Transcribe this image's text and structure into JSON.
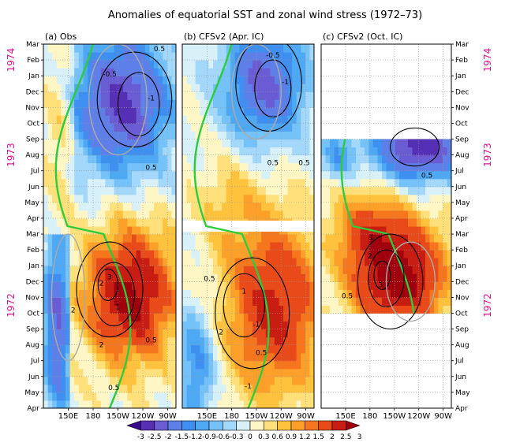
{
  "figure": {
    "title": "Anomalies of equatorial SST and zonal wind stress (1972–73)"
  },
  "chart_data": {
    "type": "heatmap",
    "months": [
      "Apr",
      "May",
      "Jun",
      "Jul",
      "Aug",
      "Sep",
      "Oct",
      "Nov",
      "Dec",
      "Jan",
      "Feb",
      "Mar",
      "Apr",
      "May",
      "Jun",
      "Jul",
      "Aug",
      "Sep",
      "Oct",
      "Nov",
      "Dec",
      "Jan",
      "Feb",
      "Mar"
    ],
    "year_labels": [
      {
        "text": "1972",
        "row": 6.5
      },
      {
        "text": "1973",
        "row": 16
      },
      {
        "text": "1974",
        "row": 22
      }
    ],
    "x_ticks": [
      "150E",
      "180",
      "150W",
      "120W",
      "90W"
    ],
    "colorbar": {
      "levels": [
        "-3",
        "-2.5",
        "-2",
        "-1.5",
        "-1.2",
        "-0.9",
        "-0.6",
        "-0.3",
        "0",
        "0.3",
        "0.6",
        "0.9",
        "1.2",
        "1.5",
        "2",
        "2.5",
        "3"
      ],
      "colors": [
        "#3a0a8c",
        "#5530b4",
        "#6a5cd2",
        "#5f7fe8",
        "#3f8ff0",
        "#4fa8f4",
        "#74c2f8",
        "#a4d8fa",
        "#d8f0f8",
        "#fff6c6",
        "#ffe07a",
        "#ffc23c",
        "#fca02a",
        "#f6761e",
        "#e84a1a",
        "#c81d12",
        "#a0000e"
      ]
    },
    "panels": [
      {
        "label": "(a) Obs",
        "first_row": 0,
        "last_row": 23,
        "gap_rows": []
      },
      {
        "label": "(b) CFSv2 (Apr. IC)",
        "first_row": 0,
        "last_row": 23,
        "gap_rows": [
          11.5
        ]
      },
      {
        "label": "(c) CFSv2 (Oct. IC)",
        "first_row": 6,
        "last_row": 17,
        "gap_rows": []
      }
    ],
    "contour_labels": [
      {
        "panel": 0,
        "text": "2",
        "lon": 190,
        "row": 7.9
      },
      {
        "panel": 0,
        "text": "3",
        "lon": 200,
        "row": 8.3
      },
      {
        "panel": 0,
        "text": "1",
        "lon": 210,
        "row": 6.4
      },
      {
        "panel": 0,
        "text": "2",
        "lon": 190,
        "row": 4.0
      },
      {
        "panel": 0,
        "text": "0.5",
        "lon": 250,
        "row": 4.3
      },
      {
        "panel": 0,
        "text": "0.5",
        "lon": 205,
        "row": 1.3
      },
      {
        "panel": 0,
        "text": "2",
        "lon": 156,
        "row": 6.2
      },
      {
        "panel": 0,
        "text": "-1",
        "lon": 250,
        "row": 19.6
      },
      {
        "panel": 0,
        "text": "0.5",
        "lon": 250,
        "row": 15.2
      },
      {
        "panel": 0,
        "text": "-0.5",
        "lon": 200,
        "row": 21.1
      },
      {
        "panel": 0,
        "text": "0.5",
        "lon": 260,
        "row": 22.7
      },
      {
        "panel": 1,
        "text": "-1",
        "lon": 210,
        "row": 5.3
      },
      {
        "panel": 1,
        "text": "-1",
        "lon": 200,
        "row": 1.4
      },
      {
        "panel": 1,
        "text": "2",
        "lon": 167,
        "row": 4.8
      },
      {
        "panel": 1,
        "text": "1",
        "lon": 195,
        "row": 7.4
      },
      {
        "panel": 1,
        "text": "0.5",
        "lon": 153,
        "row": 8.2
      },
      {
        "panel": 1,
        "text": "0.5",
        "lon": 216,
        "row": 3.5
      },
      {
        "panel": 1,
        "text": "-0.5",
        "lon": 230,
        "row": 22.3
      },
      {
        "panel": 1,
        "text": "-1",
        "lon": 245,
        "row": 20.6
      },
      {
        "panel": 1,
        "text": "0.5",
        "lon": 230,
        "row": 15.5
      },
      {
        "panel": 1,
        "text": "0.5",
        "lon": 268,
        "row": 15.5
      },
      {
        "panel": 2,
        "text": "3",
        "lon": 193,
        "row": 7.8
      },
      {
        "panel": 2,
        "text": "2",
        "lon": 180,
        "row": 9.6
      },
      {
        "panel": 2,
        "text": "1",
        "lon": 182,
        "row": 10.8
      },
      {
        "panel": 2,
        "text": "0.5",
        "lon": 152,
        "row": 7.1
      },
      {
        "panel": 2,
        "text": "0.5",
        "lon": 250,
        "row": 14.7
      }
    ]
  }
}
